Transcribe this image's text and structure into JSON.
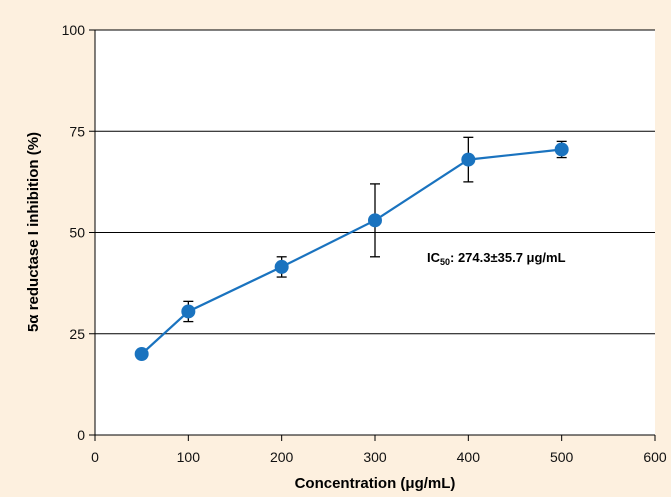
{
  "chart_data": {
    "type": "line",
    "xlabel": "Concentration (μg/mL)",
    "ylabel": "5α reductase I inhibition (%)",
    "xlim": [
      0,
      600
    ],
    "ylim": [
      0,
      100
    ],
    "xticks": [
      0,
      100,
      200,
      300,
      400,
      500,
      600
    ],
    "yticks": [
      0,
      25,
      50,
      75,
      100
    ],
    "grid": "horizontal",
    "series_color": "#1a73bf",
    "x": [
      50,
      100,
      200,
      300,
      400,
      500
    ],
    "y": [
      20,
      30.5,
      41.5,
      53,
      68,
      70.5
    ],
    "error": [
      0,
      2.5,
      2.5,
      9,
      5.5,
      2
    ],
    "annotation": {
      "prefix": "IC",
      "subscript": "50",
      "text": ": 274.3±35.7 μg/mL"
    }
  }
}
